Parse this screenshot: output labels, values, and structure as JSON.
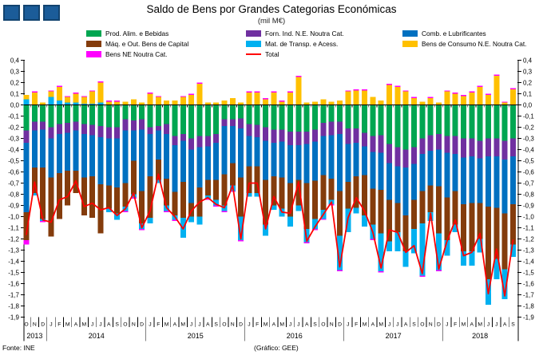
{
  "header": {
    "title": "Saldo de Bens por Grandes Categorias Económicas",
    "subtitle": "(mil M€)"
  },
  "footer": {
    "source": "Fonte: INE",
    "credit": "(Gráfico: GEE)"
  },
  "logo": {
    "name": "three-squares-logo",
    "square_count": 3,
    "color": "#1B5C99",
    "border_color": "#12436F"
  },
  "chart_data": {
    "type": "bar",
    "stacked": true,
    "overlay_line": "Total",
    "title": "Saldo de Bens por Grandes Categorias Económicas",
    "subtitle": "(mil M€)",
    "xlabel": "",
    "ylabel": "",
    "ylim": [
      -1.9,
      0.4
    ],
    "ytick_step": 0.1,
    "decimal_separator": ",",
    "grid": false,
    "legend_position": "top",
    "axis_color": "#000000",
    "categories": [
      "O",
      "N",
      "D",
      "J",
      "F",
      "M",
      "A",
      "M",
      "J",
      "J",
      "A",
      "S",
      "O",
      "N",
      "D",
      "J",
      "F",
      "M",
      "A",
      "M",
      "J",
      "J",
      "A",
      "S",
      "O",
      "N",
      "D",
      "J",
      "F",
      "M",
      "A",
      "M",
      "J",
      "J",
      "A",
      "S",
      "O",
      "N",
      "D",
      "J",
      "F",
      "M",
      "A",
      "M",
      "J",
      "J",
      "A",
      "S",
      "O",
      "N",
      "D",
      "J",
      "F",
      "M",
      "A",
      "M",
      "J",
      "J",
      "A",
      "S"
    ],
    "years": [
      {
        "label": "2013",
        "span": 3
      },
      {
        "label": "2014",
        "span": 12
      },
      {
        "label": "2015",
        "span": 12
      },
      {
        "label": "2016",
        "span": 12
      },
      {
        "label": "2017",
        "span": 12
      },
      {
        "label": "2018",
        "span": 9
      }
    ],
    "series": [
      {
        "id": "alim",
        "name": "Prod. Alim. e Bebidas",
        "color": "#00A651",
        "values": [
          -0.23,
          -0.15,
          -0.15,
          -0.2,
          -0.17,
          -0.16,
          -0.15,
          -0.17,
          -0.18,
          -0.19,
          -0.2,
          -0.2,
          -0.13,
          -0.14,
          -0.13,
          -0.2,
          -0.19,
          -0.17,
          -0.28,
          -0.26,
          -0.3,
          -0.28,
          -0.28,
          -0.26,
          -0.13,
          -0.13,
          -0.12,
          -0.17,
          -0.18,
          -0.2,
          -0.22,
          -0.22,
          -0.24,
          -0.24,
          -0.24,
          -0.22,
          -0.16,
          -0.15,
          -0.15,
          -0.21,
          -0.21,
          -0.25,
          -0.28,
          -0.27,
          -0.35,
          -0.38,
          -0.4,
          -0.38,
          -0.3,
          -0.27,
          -0.26,
          -0.28,
          -0.28,
          -0.3,
          -0.3,
          -0.32,
          -0.3,
          -0.3,
          -0.32,
          -0.3
        ]
      },
      {
        "id": "forn",
        "name": "Forn. Ind. N.E. Noutra Cat.",
        "color": "#7030A0",
        "values": [
          -0.11,
          -0.08,
          -0.07,
          -0.1,
          -0.09,
          -0.09,
          -0.08,
          -0.09,
          -0.09,
          -0.1,
          -0.1,
          -0.1,
          -0.1,
          -0.09,
          -0.09,
          -0.06,
          -0.04,
          -0.09,
          -0.08,
          -0.06,
          -0.1,
          -0.1,
          -0.09,
          -0.08,
          -0.06,
          -0.06,
          -0.09,
          -0.11,
          -0.11,
          -0.12,
          -0.12,
          -0.11,
          -0.12,
          -0.12,
          -0.11,
          -0.11,
          -0.12,
          -0.12,
          -0.11,
          -0.14,
          -0.13,
          -0.12,
          -0.14,
          -0.16,
          -0.17,
          -0.17,
          -0.16,
          -0.15,
          -0.14,
          -0.14,
          -0.14,
          -0.15,
          -0.16,
          -0.17,
          -0.16,
          -0.16,
          -0.16,
          -0.16,
          -0.17,
          -0.16
        ]
      },
      {
        "id": "comb",
        "name": "Comb. e Lubrificantes",
        "color": "#0070C0",
        "values": [
          -0.62,
          -0.33,
          -0.34,
          -0.35,
          -0.35,
          -0.34,
          -0.36,
          -0.39,
          -0.37,
          -0.42,
          -0.42,
          -0.44,
          -0.47,
          -0.27,
          -0.55,
          -0.38,
          -0.26,
          -0.4,
          -0.42,
          -0.37,
          -0.48,
          -0.36,
          -0.3,
          -0.33,
          -0.43,
          -0.33,
          -0.44,
          -0.27,
          -0.26,
          -0.35,
          -0.3,
          -0.32,
          -0.34,
          -0.31,
          -0.35,
          -0.35,
          -0.35,
          -0.39,
          -0.51,
          -0.34,
          -0.3,
          -0.26,
          -0.33,
          -0.33,
          -0.33,
          -0.33,
          -0.43,
          -0.32,
          -0.33,
          -0.31,
          -0.33,
          -0.4,
          -0.33,
          -0.42,
          -0.42,
          -0.4,
          -0.45,
          -0.46,
          -0.48,
          -0.43
        ]
      },
      {
        "id": "maq",
        "name": "Máq. e Out. Bens de Capital",
        "color": "#843C0C",
        "values": [
          -0.25,
          -0.23,
          -0.46,
          -0.53,
          -0.41,
          -0.31,
          -0.2,
          -0.34,
          -0.37,
          -0.44,
          -0.21,
          -0.23,
          -0.21,
          -0.3,
          -0.29,
          -0.37,
          -0.18,
          -0.24,
          -0.21,
          -0.32,
          -0.12,
          -0.26,
          -0.14,
          -0.18,
          -0.28,
          -0.2,
          -0.35,
          -0.24,
          -0.24,
          -0.4,
          -0.26,
          -0.28,
          -0.3,
          -0.23,
          -0.41,
          -0.34,
          -0.31,
          -0.19,
          -0.4,
          -0.24,
          -0.28,
          -0.36,
          -0.32,
          -0.39,
          -0.37,
          -0.26,
          -0.32,
          -0.26,
          -0.29,
          -0.24,
          -0.42,
          -0.38,
          -0.3,
          -0.42,
          -0.43,
          -0.32,
          -0.65,
          -0.46,
          -0.5,
          -0.36
        ]
      },
      {
        "id": "mat",
        "name": "Mat. de Transp. e Acess.",
        "color": "#00B0F0",
        "values": [
          0.05,
          -0.02,
          -0.02,
          0.07,
          0.04,
          0.02,
          0.02,
          0.01,
          0.01,
          0.02,
          -0.03,
          -0.06,
          -0.04,
          -0.03,
          -0.05,
          -0.05,
          -0.03,
          -0.05,
          -0.04,
          -0.18,
          -0.05,
          -0.07,
          -0.03,
          -0.05,
          -0.05,
          -0.05,
          -0.21,
          -0.03,
          -0.03,
          -0.1,
          -0.04,
          -0.07,
          -0.09,
          -0.05,
          -0.12,
          -0.09,
          -0.08,
          -0.04,
          -0.31,
          -0.21,
          -0.05,
          -0.1,
          -0.13,
          -0.34,
          -0.09,
          -0.17,
          -0.14,
          -0.22,
          -0.47,
          -0.08,
          -0.33,
          -0.14,
          -0.07,
          -0.13,
          -0.13,
          -0.12,
          -0.23,
          -0.18,
          -0.27,
          -0.11
        ]
      },
      {
        "id": "cons",
        "name": "Bens de Consumo N.E. Noutra Cat.",
        "color": "#FFC000",
        "values": [
          0.04,
          0.11,
          0.02,
          0.05,
          0.12,
          0.05,
          0.08,
          0.06,
          0.11,
          0.18,
          0.03,
          0.03,
          0.03,
          0.05,
          0.02,
          0.1,
          0.07,
          0.04,
          0.04,
          0.07,
          0.09,
          0.19,
          0.02,
          0.02,
          0.04,
          0.06,
          0.02,
          0.11,
          0.11,
          0.05,
          0.11,
          0.03,
          0.11,
          0.25,
          0.02,
          0.03,
          0.05,
          0.03,
          0.04,
          0.12,
          0.13,
          0.13,
          0.07,
          0.04,
          0.18,
          0.16,
          0.12,
          0.06,
          0.03,
          0.06,
          0.02,
          0.12,
          0.1,
          0.08,
          0.11,
          0.16,
          0.09,
          0.26,
          0.02,
          0.14
        ]
      },
      {
        "id": "ne",
        "name": "Bens NE Noutra Cat.",
        "color": "#FF00FF",
        "values": [
          -0.04,
          0.01,
          -0.01,
          0.01,
          0.01,
          0.01,
          0.01,
          0.01,
          0.01,
          0.01,
          0.01,
          0.01,
          -0.01,
          -0.01,
          -0.01,
          0.01,
          0.01,
          -0.01,
          -0.01,
          0.01,
          0.01,
          0.01,
          -0.01,
          -0.01,
          -0.01,
          -0.01,
          -0.01,
          0.01,
          0.01,
          0.01,
          0.01,
          0.01,
          0.01,
          0.01,
          -0.01,
          -0.01,
          -0.01,
          -0.01,
          -0.01,
          0.01,
          0.01,
          0.01,
          -0.01,
          -0.01,
          0.01,
          0.01,
          0.01,
          0.01,
          -0.01,
          0.01,
          -0.01,
          0.01,
          0.01,
          0.01,
          0.01,
          0.01,
          0.01,
          0.01,
          0.01,
          0.01
        ]
      }
    ],
    "total_line": {
      "id": "total",
      "name": "Total",
      "color": "#FF0000",
      "values": [
        -1.16,
        -0.69,
        -1.03,
        -1.05,
        -0.85,
        -0.82,
        -0.68,
        -0.91,
        -0.88,
        -0.94,
        -0.92,
        -0.99,
        -0.93,
        -0.79,
        -1.1,
        -0.95,
        -0.62,
        -0.92,
        -1.0,
        -1.11,
        -0.95,
        -0.87,
        -0.83,
        -0.89,
        -0.92,
        -0.72,
        -1.2,
        -0.7,
        -0.7,
        -1.11,
        -0.82,
        -0.96,
        -0.97,
        -0.69,
        -1.22,
        -1.09,
        -0.98,
        -0.87,
        -1.45,
        -1.01,
        -0.83,
        -0.95,
        -1.14,
        -1.46,
        -1.12,
        -1.14,
        -1.32,
        -1.26,
        -1.51,
        -0.97,
        -1.47,
        -1.22,
        -1.03,
        -1.35,
        -1.32,
        -1.15,
        -1.69,
        -1.29,
        -1.71,
        -1.21
      ]
    }
  }
}
